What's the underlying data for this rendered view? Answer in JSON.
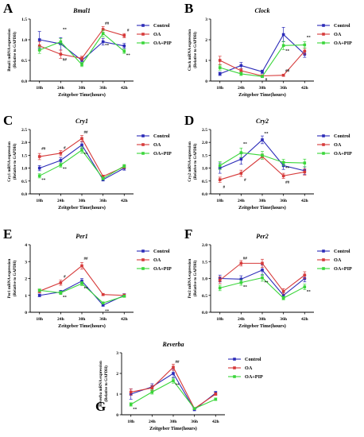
{
  "figure": {
    "series_names": [
      "Control",
      "OA",
      "OA+PIP"
    ],
    "colors": {
      "Control": "#2b2bb8",
      "OA": "#d63a3a",
      "OA+PIP": "#3ad63a"
    }
  },
  "chart_data": [
    {
      "panel": "A",
      "title": "Bmal1",
      "type": "line",
      "ylabel": [
        "Bmal1 mRNA expression",
        "(Relative to GAPDH)"
      ],
      "xlabel": "Zeitgeber Time(hours)",
      "categories": [
        "18h",
        "24h",
        "30h",
        "36h",
        "42h"
      ],
      "ylim": [
        0,
        1.5
      ],
      "yticks": [
        "0.0",
        "0.5",
        "1.0",
        "1.5"
      ],
      "series": [
        {
          "name": "Control",
          "values": [
            1.0,
            0.9,
            0.5,
            0.95,
            0.85
          ],
          "err": [
            0.2,
            0.15,
            0.06,
            0.08,
            0.06
          ]
        },
        {
          "name": "OA",
          "values": [
            0.85,
            0.65,
            0.55,
            1.25,
            1.1
          ],
          "err": [
            0.1,
            0.1,
            0.05,
            0.07,
            0.05
          ]
        },
        {
          "name": "OA+PIP",
          "values": [
            0.75,
            0.95,
            0.4,
            1.15,
            0.72
          ],
          "err": [
            0.08,
            0.08,
            0.05,
            0.08,
            0.05
          ]
        }
      ],
      "annotations": [
        {
          "text": "**",
          "x": "24h",
          "y": 1.22
        },
        {
          "text": "##",
          "x": "24h",
          "y": 0.49
        },
        {
          "text": "##",
          "x": "36h",
          "y": 1.37
        },
        {
          "text": "**",
          "x": "36h",
          "y": 0.84
        },
        {
          "text": "#",
          "x": "42h",
          "y": 1.2
        },
        {
          "text": "**",
          "x": "42h",
          "y": 0.6
        }
      ]
    },
    {
      "panel": "B",
      "title": "Clock",
      "type": "line",
      "ylabel": [
        "Clock mRNA expression",
        "(Relative to GAPDH)"
      ],
      "xlabel": "Zeitgeber Time(hours)",
      "categories": [
        "18h",
        "24h",
        "30h",
        "36h",
        "42h"
      ],
      "ylim": [
        0,
        3
      ],
      "yticks": [
        "0",
        "1",
        "2",
        "3"
      ],
      "series": [
        {
          "name": "Control",
          "values": [
            0.35,
            0.75,
            0.45,
            2.25,
            1.3
          ],
          "err": [
            0.08,
            0.15,
            0.08,
            0.35,
            0.15
          ]
        },
        {
          "name": "OA",
          "values": [
            1.0,
            0.5,
            0.25,
            0.28,
            1.45
          ],
          "err": [
            0.2,
            0.1,
            0.05,
            0.05,
            0.15
          ]
        },
        {
          "name": "OA+PIP",
          "values": [
            0.65,
            0.35,
            0.22,
            1.72,
            1.75
          ],
          "err": [
            0.12,
            0.08,
            0.05,
            0.2,
            0.15
          ]
        }
      ],
      "annotations": [
        {
          "text": "#",
          "x": "30h",
          "y": 0.02
        },
        {
          "text": "##",
          "x": "36h",
          "y": 0.45
        },
        {
          "text": "**",
          "x": "36h",
          "y": 1.4
        },
        {
          "text": "**",
          "x": "42h",
          "y": 2.05
        }
      ]
    },
    {
      "panel": "C",
      "title": "Cry1",
      "type": "line",
      "ylabel": [
        "Cry1 mRNA expression",
        "(Relative to GAPDH)"
      ],
      "xlabel": "Zeitgeber Time(hours)",
      "categories": [
        "18h",
        "24h",
        "30h",
        "36h",
        "42h"
      ],
      "ylim": [
        0,
        2.5
      ],
      "yticks": [
        "0.0",
        "0.5",
        "1.0",
        "1.5",
        "2.0",
        "2.5"
      ],
      "series": [
        {
          "name": "Control",
          "values": [
            1.0,
            1.3,
            1.9,
            0.55,
            1.0
          ],
          "err": [
            0.1,
            0.1,
            0.12,
            0.05,
            0.08
          ]
        },
        {
          "name": "OA",
          "values": [
            1.45,
            1.58,
            2.15,
            0.68,
            1.05
          ],
          "err": [
            0.12,
            0.1,
            0.12,
            0.05,
            0.06
          ]
        },
        {
          "name": "OA+PIP",
          "values": [
            0.7,
            1.12,
            1.7,
            0.6,
            1.08
          ],
          "err": [
            0.08,
            0.08,
            0.12,
            0.05,
            0.06
          ]
        }
      ],
      "annotations": [
        {
          "text": "##",
          "x": "18h",
          "y": 1.72
        },
        {
          "text": "**",
          "x": "18h",
          "y": 0.5
        },
        {
          "text": "#",
          "x": "24h",
          "y": 1.75
        },
        {
          "text": "**",
          "x": "24h",
          "y": 0.93
        },
        {
          "text": "##",
          "x": "30h",
          "y": 2.35
        },
        {
          "text": "**",
          "x": "30h",
          "y": 1.5
        }
      ]
    },
    {
      "panel": "D",
      "title": "Cry2",
      "type": "line",
      "ylabel": [
        "Cry2 mRNA expression",
        "(Relative to GAPDH)"
      ],
      "xlabel": "Zeitgeber Time(hours)",
      "categories": [
        "18h",
        "24h",
        "30h",
        "36h",
        "42h"
      ],
      "ylim": [
        0,
        2.5
      ],
      "yticks": [
        "0.0",
        "0.5",
        "1.0",
        "1.5",
        "2.0",
        "2.5"
      ],
      "series": [
        {
          "name": "Control",
          "values": [
            1.0,
            1.35,
            2.1,
            1.1,
            0.9
          ],
          "err": [
            0.2,
            0.2,
            0.15,
            0.15,
            0.15
          ]
        },
        {
          "name": "OA",
          "values": [
            0.55,
            0.8,
            1.45,
            0.7,
            0.85
          ],
          "err": [
            0.1,
            0.12,
            0.1,
            0.1,
            0.12
          ]
        },
        {
          "name": "OA+PIP",
          "values": [
            1.1,
            1.6,
            1.5,
            1.22,
            1.2
          ],
          "err": [
            0.15,
            0.18,
            0.15,
            0.12,
            0.15
          ]
        }
      ],
      "annotations": [
        {
          "text": "**",
          "x": "24h",
          "y": 1.9
        },
        {
          "text": "**",
          "x": "30h",
          "y": 2.3
        },
        {
          "text": "#",
          "x": "18h",
          "y": 0.22
        },
        {
          "text": "#",
          "x": "24h",
          "y": 0.5
        },
        {
          "text": "##",
          "x": "36h",
          "y": 0.4
        },
        {
          "text": "**",
          "x": "36h",
          "y": 0.95
        }
      ]
    },
    {
      "panel": "E",
      "title": "Per1",
      "type": "line",
      "ylabel": [
        "Per1 mRNA expression",
        "(Relative to GAPDH)"
      ],
      "xlabel": "Zeitgeber Time(hours)",
      "categories": [
        "18h",
        "24h",
        "30h",
        "36h",
        "42h"
      ],
      "ylim": [
        0,
        4
      ],
      "yticks": [
        "0",
        "1",
        "2",
        "3",
        "4"
      ],
      "series": [
        {
          "name": "Control",
          "values": [
            1.0,
            1.2,
            1.85,
            0.42,
            1.0
          ],
          "err": [
            0.08,
            0.1,
            0.15,
            0.05,
            0.1
          ]
        },
        {
          "name": "OA",
          "values": [
            1.25,
            1.75,
            2.75,
            1.05,
            1.0
          ],
          "err": [
            0.1,
            0.15,
            0.2,
            0.06,
            0.08
          ]
        },
        {
          "name": "OA+PIP",
          "values": [
            1.3,
            1.15,
            1.7,
            0.55,
            0.95
          ],
          "err": [
            0.08,
            0.1,
            0.12,
            0.05,
            0.06
          ]
        }
      ],
      "annotations": [
        {
          "text": "#",
          "x": "24h",
          "y": 2.05
        },
        {
          "text": "**",
          "x": "24h",
          "y": 0.82
        },
        {
          "text": "##",
          "x": "30h",
          "y": 3.1
        },
        {
          "text": "**",
          "x": "30h",
          "y": 1.33
        },
        {
          "text": "**",
          "x": "36h",
          "y": 0.0
        }
      ]
    },
    {
      "panel": "F",
      "title": "Per2",
      "type": "line",
      "ylabel": [
        "Per2 mRNA expression",
        "(Relative to GAPDH)"
      ],
      "xlabel": "Zeitgeber Time(hours)",
      "categories": [
        "18h",
        "24h",
        "30h",
        "36h",
        "42h"
      ],
      "ylim": [
        0,
        2.0
      ],
      "yticks": [
        "0.0",
        "0.5",
        "1.0",
        "1.5",
        "2.0"
      ],
      "series": [
        {
          "name": "Control",
          "values": [
            1.0,
            0.98,
            1.25,
            0.5,
            1.0
          ],
          "err": [
            0.1,
            0.1,
            0.15,
            0.08,
            0.1
          ]
        },
        {
          "name": "OA",
          "values": [
            0.95,
            1.45,
            1.45,
            0.62,
            1.1
          ],
          "err": [
            0.1,
            0.08,
            0.12,
            0.08,
            0.1
          ]
        },
        {
          "name": "OA+PIP",
          "values": [
            0.72,
            0.88,
            1.02,
            0.42,
            0.75
          ],
          "err": [
            0.08,
            0.08,
            0.1,
            0.05,
            0.08
          ]
        }
      ],
      "annotations": [
        {
          "text": "##",
          "x": "24h",
          "y": 1.56
        },
        {
          "text": "**",
          "x": "24h",
          "y": 0.72
        },
        {
          "text": "**",
          "x": "30h",
          "y": 0.85
        },
        {
          "text": "**",
          "x": "42h",
          "y": 0.58
        }
      ]
    },
    {
      "panel": "G",
      "title": "Reverba",
      "type": "line",
      "ylabel": [
        "Reverba mRNA expression",
        "(Relative to GAPDH)"
      ],
      "xlabel": "Zeitgeber Time(hours)",
      "categories": [
        "18h",
        "24h",
        "30h",
        "36h",
        "42h"
      ],
      "ylim": [
        0,
        3
      ],
      "yticks": [
        "0",
        "1",
        "2",
        "3"
      ],
      "series": [
        {
          "name": "Control",
          "values": [
            1.0,
            1.35,
            2.0,
            0.25,
            1.05
          ],
          "err": [
            0.25,
            0.15,
            0.2,
            0.05,
            0.08
          ]
        },
        {
          "name": "OA",
          "values": [
            1.1,
            1.3,
            2.3,
            0.3,
            1.0
          ],
          "err": [
            0.15,
            0.12,
            0.15,
            0.05,
            0.06
          ]
        },
        {
          "name": "OA+PIP",
          "values": [
            0.5,
            1.1,
            1.65,
            0.3,
            0.75
          ],
          "err": [
            0.08,
            0.1,
            0.12,
            0.05,
            0.06
          ]
        }
      ],
      "annotations": [
        {
          "text": "**",
          "x": "18h",
          "y": 0.22
        },
        {
          "text": "##",
          "x": "30h",
          "y": 2.5
        },
        {
          "text": "**",
          "x": "30h",
          "y": 1.38
        }
      ]
    }
  ]
}
